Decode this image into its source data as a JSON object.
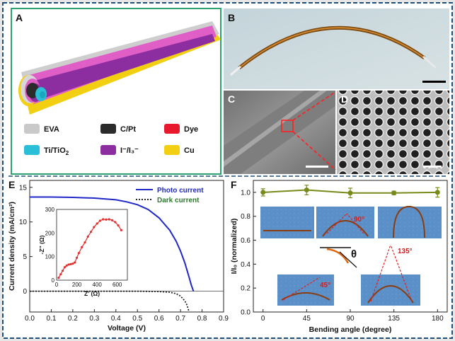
{
  "panels": {
    "A": {
      "letter": "A",
      "legend": [
        {
          "label": "EVA",
          "color": "#c9c9c9"
        },
        {
          "label": "C/Pt",
          "color": "#2b2b2b"
        },
        {
          "label": "Dye",
          "color": "#e8192c"
        },
        {
          "label": "Ti/TiO",
          "sub": "2",
          "color": "#29bfd6"
        },
        {
          "label": "I⁻/I₃⁻",
          "color": "#8c2ea0"
        },
        {
          "label": "Cu",
          "color": "#f3cf12"
        }
      ]
    },
    "B": {
      "letter": "B"
    },
    "C": {
      "letter": "C"
    },
    "D": {
      "letter": "D"
    },
    "E": {
      "letter": "E"
    },
    "F": {
      "letter": "F",
      "theta": "θ"
    }
  },
  "chart_data": [
    {
      "type": "line",
      "panel": "E",
      "xlabel": "Voltage (V)",
      "ylabel": "Current density (mA/cm²)",
      "xlim": [
        0.0,
        0.9
      ],
      "ylim": [
        -3,
        16
      ],
      "xticks": [
        "0.0",
        "0.1",
        "0.2",
        "0.3",
        "0.4",
        "0.5",
        "0.6",
        "0.7",
        "0.8",
        "0.9"
      ],
      "yticks": [
        "0",
        "5",
        "10",
        "15"
      ],
      "legend_position": "top-right",
      "series": [
        {
          "name": "Photo current",
          "color": "#2028c8",
          "style": "solid",
          "x": [
            0.0,
            0.1,
            0.2,
            0.3,
            0.4,
            0.45,
            0.5,
            0.55,
            0.6,
            0.65,
            0.68,
            0.7,
            0.72,
            0.74,
            0.75,
            0.76
          ],
          "y": [
            13.6,
            13.6,
            13.55,
            13.45,
            13.2,
            12.9,
            12.5,
            11.8,
            10.6,
            8.8,
            7.2,
            5.8,
            4.1,
            2.0,
            0.9,
            0.0
          ]
        },
        {
          "name": "Dark current",
          "color": "#222222",
          "style": "dotted",
          "x": [
            0.0,
            0.2,
            0.4,
            0.5,
            0.6,
            0.65,
            0.68,
            0.7,
            0.72,
            0.73,
            0.74
          ],
          "y": [
            0.0,
            0.0,
            0.0,
            0.0,
            -0.05,
            -0.15,
            -0.35,
            -0.7,
            -1.4,
            -2.0,
            -3.0
          ]
        }
      ],
      "inset": {
        "type": "line",
        "xlabel": "Z' (Ω)",
        "ylabel": "-Z'' (Ω)",
        "xlim": [
          0,
          700
        ],
        "ylim": [
          0,
          300
        ],
        "xticks": [
          "0",
          "200",
          "400",
          "600"
        ],
        "yticks": [
          "0",
          "100",
          "200",
          "300"
        ],
        "color": "#e03030",
        "x": [
          20,
          40,
          60,
          80,
          100,
          120,
          140,
          160,
          180,
          200,
          220,
          250,
          280,
          310,
          340,
          370,
          400,
          430,
          460,
          490,
          520,
          550,
          580,
          610,
          640
        ],
        "y": [
          10,
          25,
          40,
          55,
          62,
          66,
          68,
          70,
          75,
          95,
          115,
          140,
          160,
          185,
          205,
          225,
          240,
          252,
          258,
          257,
          258,
          254,
          246,
          232,
          212
        ]
      }
    },
    {
      "type": "scatter",
      "panel": "F",
      "xlabel": "Bending angle (degree)",
      "ylabel": "I/I₀ (normalized)",
      "xlim": [
        -10,
        190
      ],
      "ylim": [
        0.0,
        1.1
      ],
      "xticks": [
        "0",
        "45",
        "90",
        "135",
        "180"
      ],
      "yticks": [
        "0.0",
        "0.2",
        "0.4",
        "0.6",
        "0.8",
        "1.0"
      ],
      "color": "#7a8a1a",
      "x": [
        0,
        45,
        90,
        135,
        180
      ],
      "y": [
        1.0,
        1.02,
        0.995,
        0.995,
        1.0
      ],
      "err": [
        0.03,
        0.04,
        0.04,
        0.015,
        0.04
      ],
      "annotations": [
        "90°",
        "135°",
        "45°"
      ]
    }
  ]
}
